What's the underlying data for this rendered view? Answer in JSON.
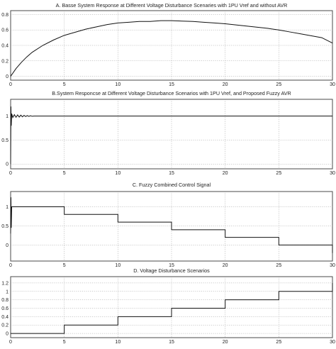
{
  "chart_data": [
    {
      "type": "line",
      "title": "A. Basse System Response at Different Voltage Disturbance Scenaries with 1PU Vref and without AVR",
      "xlim": [
        0,
        30
      ],
      "ylim": [
        -0.05,
        0.85
      ],
      "xticks": [
        0,
        5,
        10,
        15,
        20,
        25,
        30
      ],
      "yticks": [
        0,
        0.2,
        0.4,
        0.6,
        0.8
      ],
      "grid": true,
      "series": [
        {
          "x": [
            0,
            0.5,
            1,
            1.5,
            2,
            3,
            4,
            5,
            6,
            7,
            8,
            9,
            10,
            11,
            12,
            13,
            14,
            15,
            16,
            17,
            18,
            19,
            20,
            21,
            22,
            23,
            24,
            25,
            26,
            27,
            28,
            29,
            30
          ],
          "y": [
            0,
            0.1,
            0.18,
            0.25,
            0.31,
            0.4,
            0.47,
            0.53,
            0.57,
            0.61,
            0.64,
            0.67,
            0.69,
            0.7,
            0.71,
            0.71,
            0.72,
            0.72,
            0.715,
            0.71,
            0.7,
            0.69,
            0.68,
            0.665,
            0.65,
            0.635,
            0.62,
            0.6,
            0.575,
            0.55,
            0.525,
            0.5,
            0.43
          ]
        }
      ]
    },
    {
      "type": "line",
      "title": "B.System Responcse at Different  Voltage Disturbance Scenarios with 1PU Vref, and Proposed Fuzzy AVR",
      "xlim": [
        0,
        30
      ],
      "ylim": [
        -0.1,
        1.35
      ],
      "xticks": [
        0,
        5,
        10,
        15,
        20,
        25,
        30
      ],
      "yticks": [
        0,
        0.5,
        1
      ],
      "grid": true,
      "series": [
        {
          "x": [
            0,
            0.03,
            0.06,
            0.1,
            0.2,
            0.35,
            0.5,
            0.65,
            0.8,
            0.95,
            1.1,
            1.25,
            1.4,
            1.55,
            1.7,
            1.85,
            2,
            2.2,
            3,
            30
          ],
          "y": [
            0,
            1.2,
            0.8,
            1.05,
            0.97,
            1.03,
            0.975,
            1.025,
            0.98,
            1.02,
            0.985,
            1.015,
            0.99,
            1.01,
            0.993,
            1.007,
            0.996,
            1,
            1,
            1
          ]
        }
      ]
    },
    {
      "type": "line",
      "title": "C. Fuzzy Combined Control Signal",
      "xlim": [
        0,
        30
      ],
      "ylim": [
        -0.42,
        1.4
      ],
      "xticks": [
        0,
        5,
        10,
        15,
        20,
        25,
        30
      ],
      "yticks": [
        0,
        0.5,
        1
      ],
      "grid": true,
      "series": [
        {
          "x": [
            0,
            0.03,
            0.06,
            0.1,
            5,
            5,
            10,
            10,
            15,
            15,
            20,
            20,
            25,
            25,
            30,
            30,
            29.999,
            30
          ],
          "y": [
            0.3,
            1.25,
            0.45,
            1,
            1,
            0.8,
            0.8,
            0.6,
            0.6,
            0.4,
            0.4,
            0.2,
            0.2,
            0,
            0,
            -0.2,
            -0.2,
            0
          ]
        }
      ]
    },
    {
      "type": "line",
      "title": "D. Voltage Disturbance Scenarios",
      "xlim": [
        0,
        30
      ],
      "ylim": [
        -0.1,
        1.35
      ],
      "xticks": [
        0,
        5,
        10,
        15,
        20,
        25,
        30
      ],
      "yticks": [
        0,
        0.2,
        0.4,
        0.6,
        0.8,
        1,
        1.2
      ],
      "grid": true,
      "series": [
        {
          "x": [
            0,
            5,
            5,
            10,
            10,
            15,
            15,
            20,
            20,
            25,
            25,
            30,
            30,
            30
          ],
          "y": [
            0,
            0,
            0.2,
            0.2,
            0.4,
            0.4,
            0.6,
            0.6,
            0.8,
            0.8,
            1,
            1,
            1.2,
            1.2
          ]
        }
      ]
    }
  ]
}
